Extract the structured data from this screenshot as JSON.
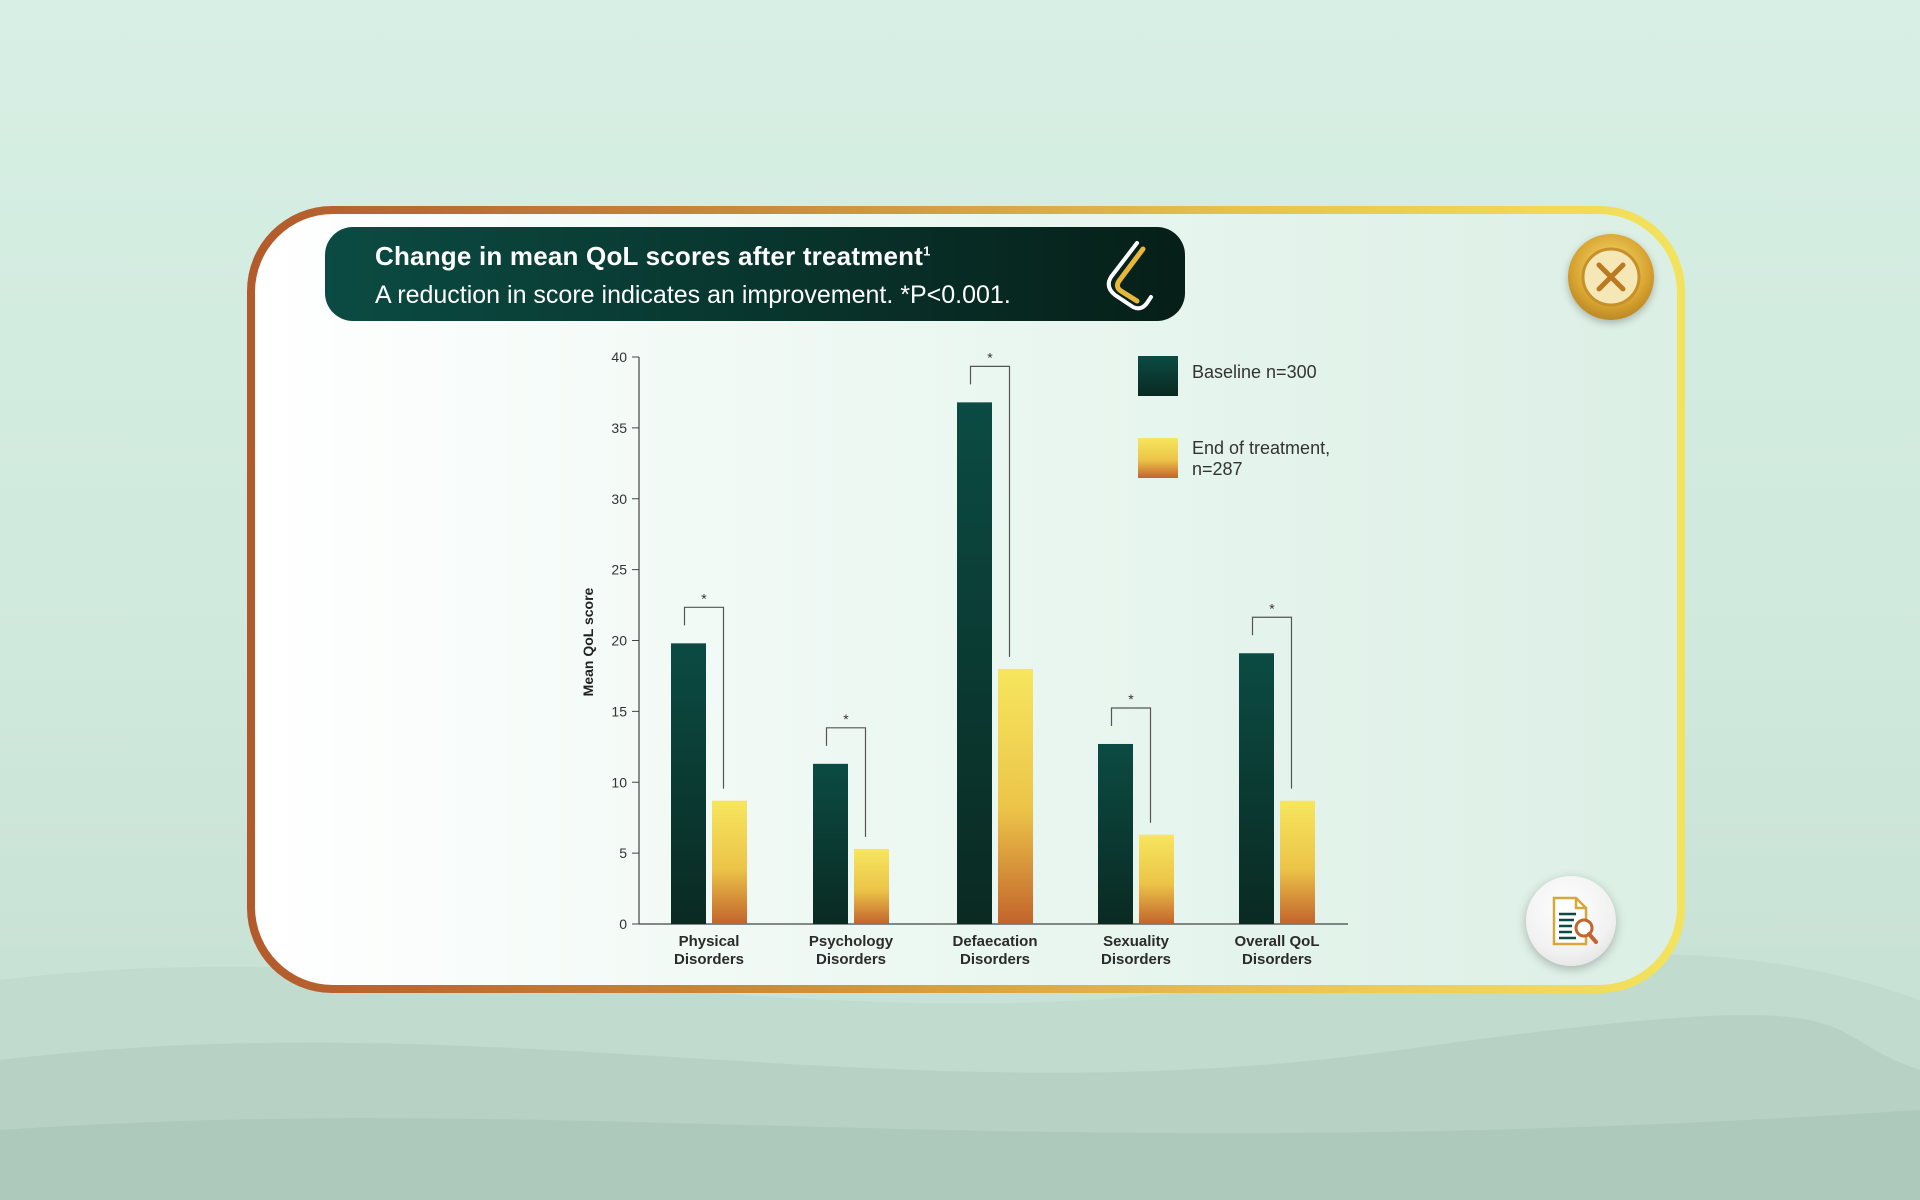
{
  "header": {
    "title": "Change in mean QoL scores after treatment",
    "title_superscript": "1",
    "subtitle": "A reduction in score indicates an improvement. *P<0.001."
  },
  "controls": {
    "close_icon": "close-icon",
    "reference_icon": "document-search-icon"
  },
  "colors": {
    "baseline_top": "#0b4b43",
    "baseline_bottom": "#0a2a22",
    "end_top": "#f6e65e",
    "end_bottom": "#c2642c",
    "frame_left": "#b35a2c",
    "frame_right": "#f3e35c"
  },
  "chart_data": {
    "type": "bar",
    "categories": [
      [
        "Physical",
        "Disorders"
      ],
      [
        "Psychology",
        "Disorders"
      ],
      [
        "Defaecation",
        "Disorders"
      ],
      [
        "Sexuality",
        "Disorders"
      ],
      [
        "Overall QoL",
        "Disorders"
      ]
    ],
    "series": [
      {
        "name": "Baseline n=300",
        "values": [
          19.8,
          11.3,
          36.8,
          12.7,
          19.1
        ]
      },
      {
        "name": "End of treatment, n=287",
        "legend_lines": [
          "End of treatment,",
          "n=287"
        ],
        "values": [
          8.7,
          5.3,
          18.0,
          6.3,
          8.7
        ]
      }
    ],
    "ylabel": "Mean QoL score",
    "xlabel": "",
    "ylim": [
      0,
      40
    ],
    "yticks": [
      0,
      5,
      10,
      15,
      20,
      25,
      30,
      35,
      40
    ],
    "significance_marker": "*",
    "significant": [
      true,
      true,
      true,
      true,
      true
    ],
    "legend_position": "top-right",
    "grid": false
  }
}
